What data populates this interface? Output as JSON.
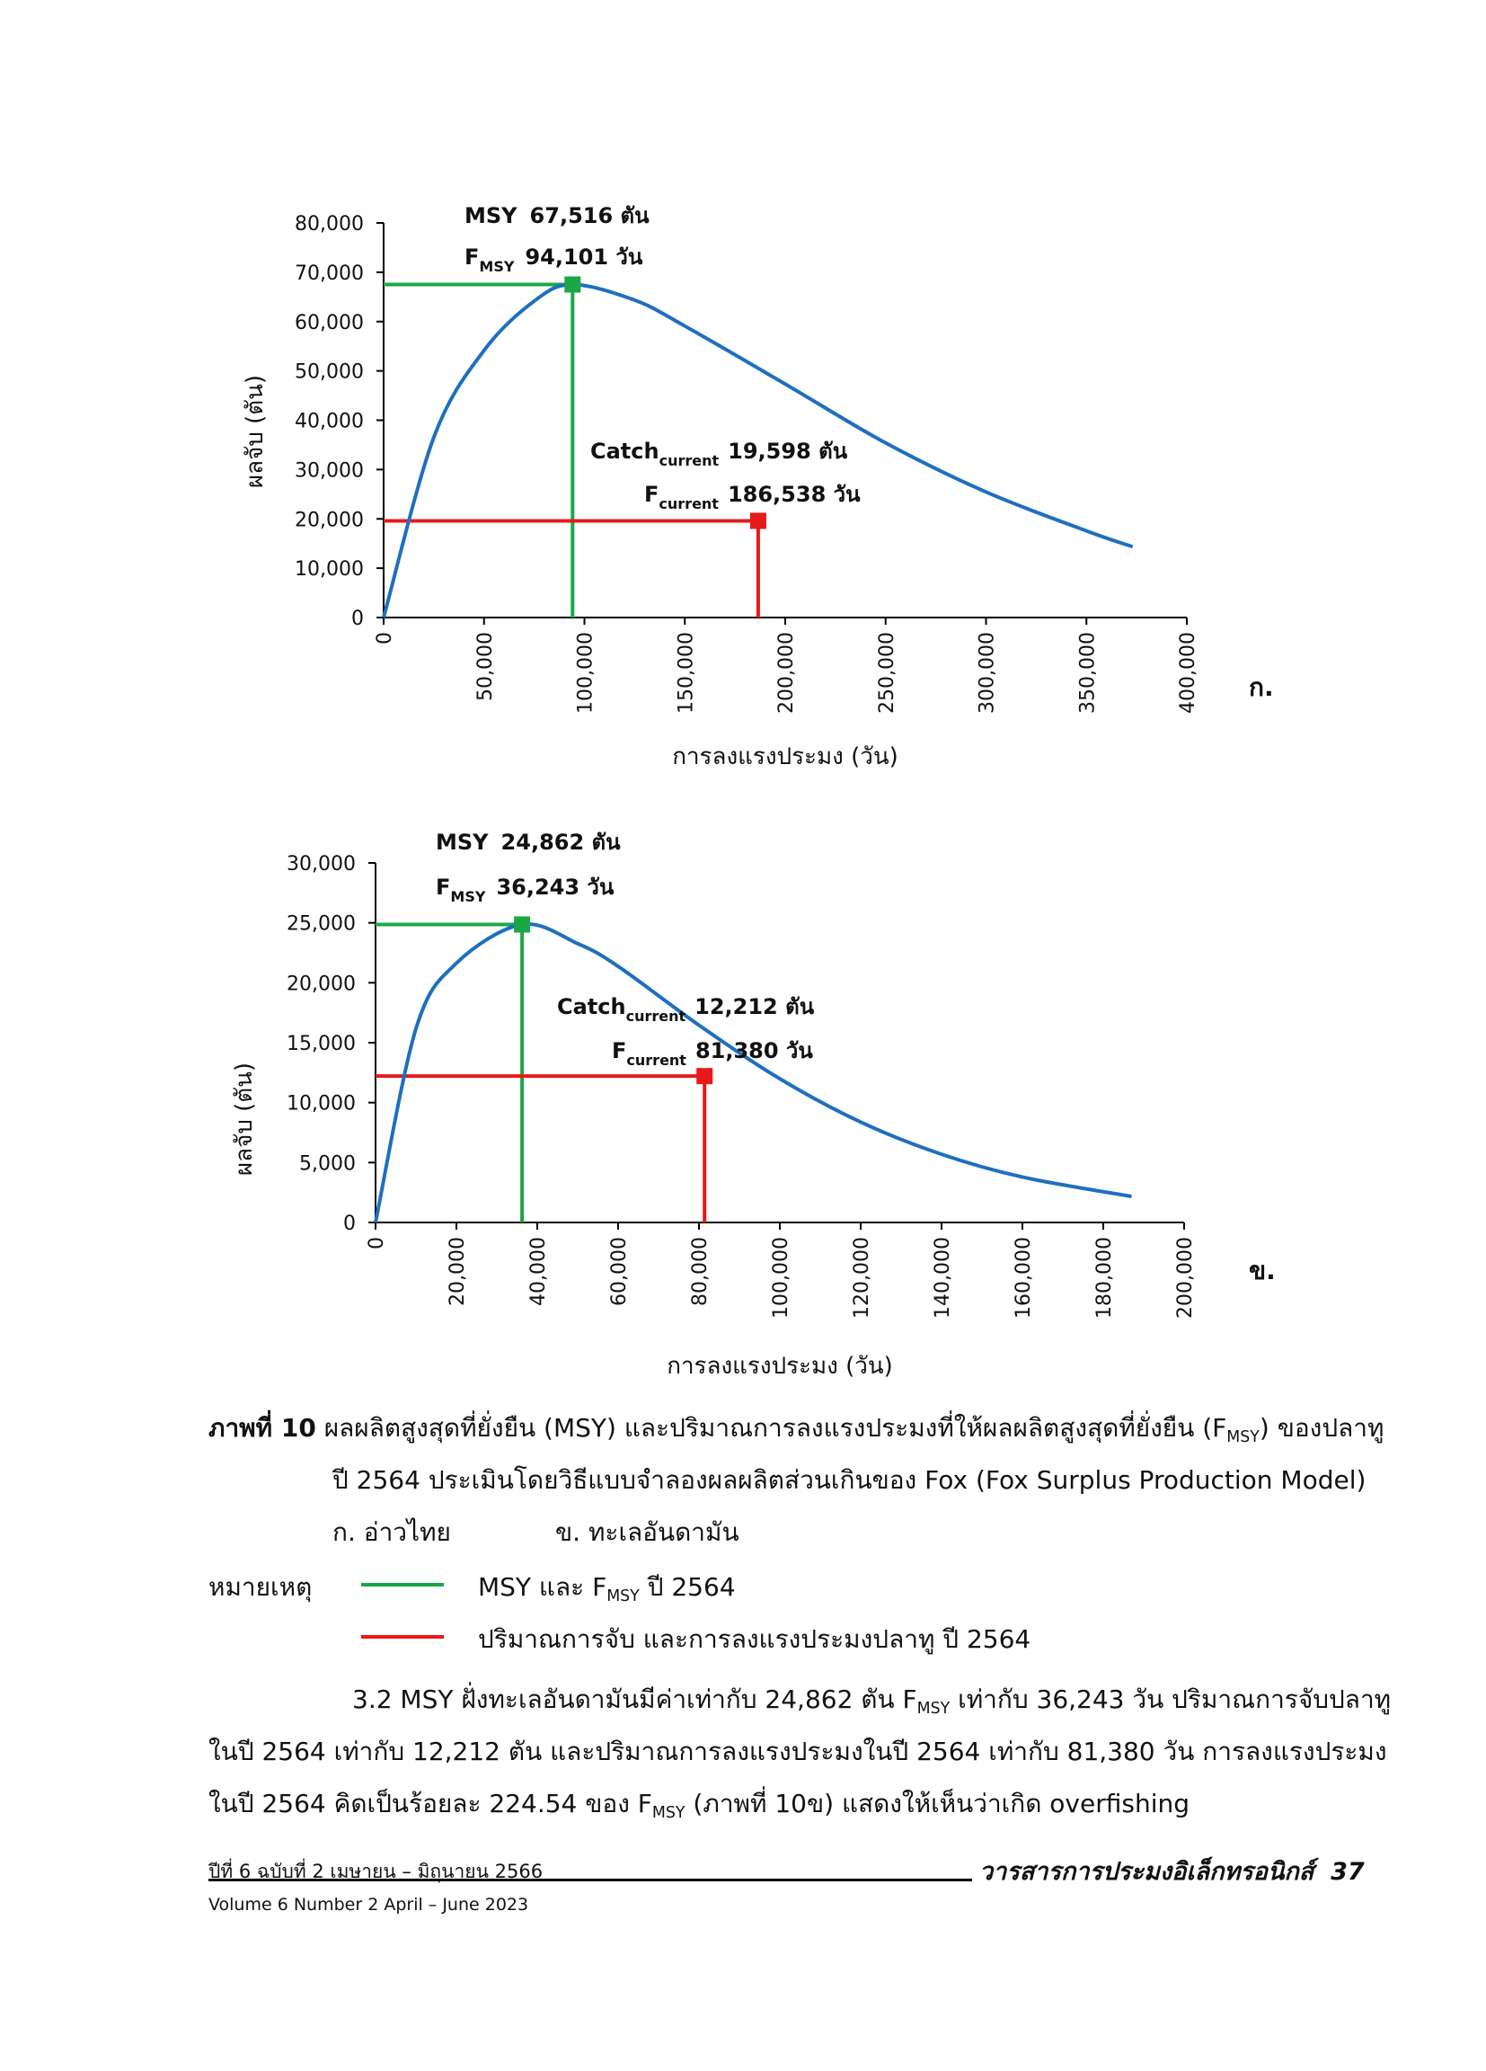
{
  "chart_data": [
    {
      "id": "a",
      "type": "line",
      "panel_label": "ก.",
      "model": "Fox surplus production",
      "x": [
        0,
        25000,
        50000,
        75000,
        94101,
        125000,
        150000,
        200000,
        250000,
        300000,
        350000,
        373000
      ],
      "series": [
        {
          "name": "ผลจับ",
          "color": "#1f6fbf",
          "values": [
            0,
            36540,
            54140,
            64160,
            67516,
            64340,
            59100,
            47340,
            35400,
            25450,
            17570,
            14350
          ]
        }
      ],
      "xlabel": "การลงแรงประมง (วัน)",
      "ylabel": "ผลจับ (ตัน)",
      "xlim": [
        0,
        400000
      ],
      "ylim": [
        0,
        80000
      ],
      "x_ticks": [
        "0",
        "50,000",
        "100,000",
        "150,000",
        "200,000",
        "250,000",
        "300,000",
        "350,000",
        "400,000"
      ],
      "x_tick_values": [
        0,
        50000,
        100000,
        150000,
        200000,
        250000,
        300000,
        350000,
        400000
      ],
      "y_ticks": [
        "0",
        "10,000",
        "20,000",
        "30,000",
        "40,000",
        "50,000",
        "60,000",
        "70,000",
        "80,000"
      ],
      "y_tick_values": [
        0,
        10000,
        20000,
        30000,
        40000,
        50000,
        60000,
        70000,
        80000
      ],
      "msy_point": {
        "x": 94101,
        "y": 67516,
        "color": "#1aa847"
      },
      "current_point": {
        "x": 186538,
        "y": 19598,
        "color": "#e8191a"
      },
      "annotations": {
        "msy_prefix": "MSY",
        "msy_value": "67,516 ตัน",
        "fmsy_base": "F",
        "fmsy_sub": "MSY",
        "fmsy_value": "94,101 วัน",
        "catch_base": "Catch",
        "catch_sub": "current",
        "catch_value": "19,598 ตัน",
        "fcur_base": "F",
        "fcur_sub": "current",
        "fcur_value": "186,538 วัน"
      }
    },
    {
      "id": "b",
      "type": "line",
      "panel_label": "ข.",
      "model": "Fox surplus production",
      "x": [
        0,
        10000,
        20000,
        36243,
        50000,
        60000,
        80000,
        100000,
        120000,
        140000,
        160000,
        187000
      ],
      "series": [
        {
          "name": "ผลจับ",
          "color": "#1f6fbf",
          "values": [
            0,
            16170,
            21630,
            24862,
            23270,
            21370,
            16460,
            11990,
            8380,
            5690,
            3790,
            2170
          ]
        }
      ],
      "xlabel": "การลงแรงประมง (วัน)",
      "ylabel": "ผลจับ (ตัน)",
      "xlim": [
        0,
        200000
      ],
      "ylim": [
        0,
        30000
      ],
      "x_ticks": [
        "0",
        "20,000",
        "40,000",
        "60,000",
        "80,000",
        "100,000",
        "120,000",
        "140,000",
        "160,000",
        "180,000",
        "200,000"
      ],
      "x_tick_values": [
        0,
        20000,
        40000,
        60000,
        80000,
        100000,
        120000,
        140000,
        160000,
        180000,
        200000
      ],
      "y_ticks": [
        "0",
        "5,000",
        "10,000",
        "15,000",
        "20,000",
        "25,000",
        "30,000"
      ],
      "y_tick_values": [
        0,
        5000,
        10000,
        15000,
        20000,
        25000,
        30000
      ],
      "msy_point": {
        "x": 36243,
        "y": 24862,
        "color": "#1aa847"
      },
      "current_point": {
        "x": 81380,
        "y": 12212,
        "color": "#e8191a"
      },
      "annotations": {
        "msy_prefix": "MSY",
        "msy_value": "24,862 ตัน",
        "fmsy_base": "F",
        "fmsy_sub": "MSY",
        "fmsy_value": "36,243 วัน",
        "catch_base": "Catch",
        "catch_sub": "current",
        "catch_value": "12,212 ตัน",
        "fcur_base": "F",
        "fcur_sub": "current",
        "fcur_value": "81,380 วัน"
      }
    }
  ],
  "caption": {
    "figure_label": "ภาพที่ 10",
    "line1_before": "ผลผลิตสูงสุดที่ยั่งยืน (MSY) และปริมาณการลงแรงประมงที่ให้ผลผลิตสูงสุดที่ยั่งยืน (F",
    "line1_sub": "MSY",
    "line1_after": ") ของปลาทู",
    "line2": "ปี 2564 ประเมินโดยวิธีแบบจำลองผลผลิตส่วนเกินของ Fox (Fox Surplus Production Model)",
    "panel_a": "ก. อ่าวไทย",
    "panel_b": "ข. ทะเลอันดามัน"
  },
  "legend": {
    "title": "หมายเหตุ",
    "items": [
      {
        "color": "#1aa847",
        "text_before": "MSY และ F",
        "text_sub": "MSY",
        "text_after": " ปี 2564"
      },
      {
        "color": "#e8191a",
        "text": "ปริมาณการจับ และการลงแรงประมงปลาทู ปี 2564"
      }
    ]
  },
  "paragraph": {
    "l1_a": "3.2 MSY ฝั่งทะเลอันดามันมีค่าเท่ากับ 24,862 ตัน F",
    "l1_sub": "MSY",
    "l1_b": " เท่ากับ 36,243 วัน ปริมาณการจับปลาทู",
    "l2": "ในปี 2564 เท่ากับ 12,212 ตัน และปริมาณการลงแรงประมงในปี 2564 เท่ากับ 81,380 วัน การลงแรงประมง",
    "l3_a": "ในปี 2564 คิดเป็นร้อยละ 224.54 ของ F",
    "l3_sub": "MSY",
    "l3_b": " (ภาพที่ 10ข) แสดงให้เห็นว่าเกิด overfishing"
  },
  "footer": {
    "issue_th": "ปีที่ 6 ฉบับที่ 2 เมษายน – มิถุนายน 2566",
    "issue_en": "Volume 6 Number 2 April – June 2023",
    "journal": "วารสารการประมงอิเล็กทรอนิกส์",
    "page": "37"
  }
}
